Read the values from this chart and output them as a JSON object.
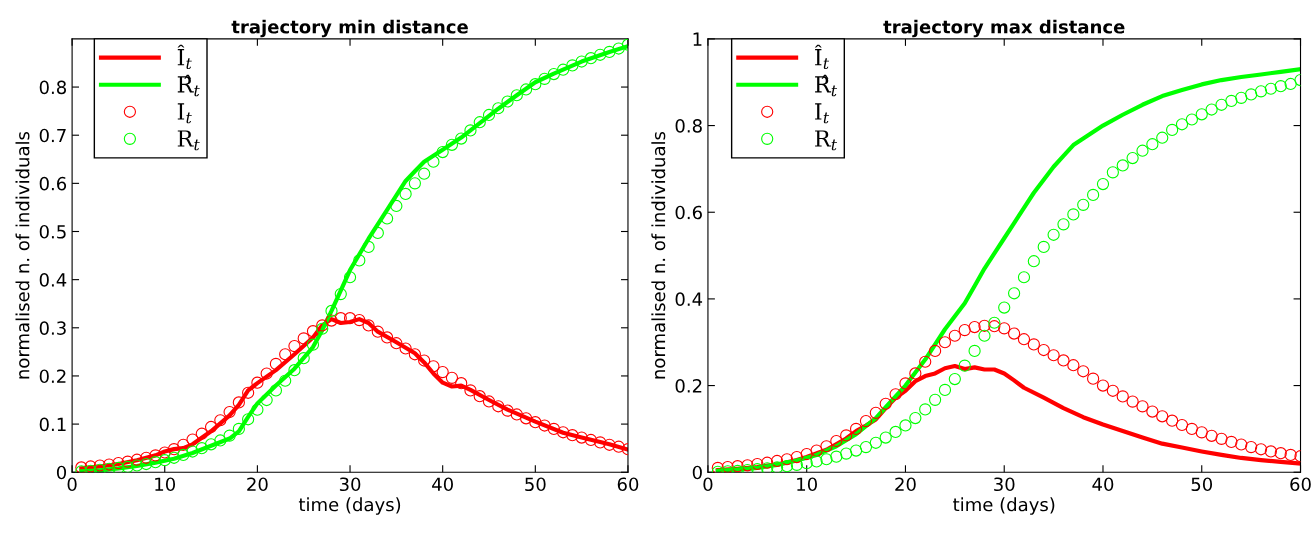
{
  "chart_data": [
    {
      "type": "line",
      "title": "trajectory min distance",
      "xlabel": "time (days)",
      "ylabel": "normalised n. of individuals",
      "x": [
        1,
        2,
        3,
        4,
        5,
        6,
        7,
        8,
        9,
        10,
        11,
        12,
        13,
        14,
        15,
        16,
        17,
        18,
        19,
        20,
        21,
        22,
        23,
        24,
        25,
        26,
        27,
        28,
        29,
        30,
        31,
        32,
        33,
        34,
        35,
        36,
        37,
        38,
        39,
        40,
        41,
        42,
        43,
        44,
        45,
        46,
        47,
        48,
        49,
        50,
        51,
        52,
        53,
        54,
        55,
        56,
        57,
        58,
        59,
        60
      ],
      "xlim": [
        0,
        60
      ],
      "xticks": [
        0,
        10,
        20,
        30,
        40,
        50,
        60
      ],
      "ylim": [
        0,
        0.9
      ],
      "yticks": [
        0,
        0.1,
        0.2,
        0.3,
        0.4,
        0.5,
        0.6,
        0.7,
        0.8
      ],
      "legend": "top left",
      "grid": false,
      "series": [
        {
          "name": "Î$_{t}$",
          "color": "#ff0000",
          "line_style": "solid",
          "x": [
            1,
            3,
            5,
            7,
            9,
            10,
            11,
            12,
            13,
            15,
            17,
            18,
            19,
            20,
            22,
            24,
            26,
            27,
            28,
            29,
            30,
            31,
            32,
            33,
            35,
            37,
            38,
            39,
            40,
            41,
            42,
            43,
            45,
            47,
            50,
            53,
            55,
            58,
            60
          ],
          "values": [
            0.008,
            0.012,
            0.017,
            0.025,
            0.035,
            0.043,
            0.048,
            0.05,
            0.058,
            0.085,
            0.118,
            0.14,
            0.17,
            0.185,
            0.212,
            0.245,
            0.28,
            0.305,
            0.318,
            0.31,
            0.312,
            0.318,
            0.31,
            0.292,
            0.27,
            0.247,
            0.228,
            0.205,
            0.186,
            0.178,
            0.18,
            0.171,
            0.15,
            0.13,
            0.105,
            0.082,
            0.072,
            0.058,
            0.047
          ]
        },
        {
          "name": "R̂$_{t}$",
          "color": "#00ff00",
          "line_style": "solid",
          "x": [
            1,
            3,
            5,
            7,
            9,
            11,
            13,
            15,
            17,
            18,
            19,
            20,
            22,
            24,
            26,
            27,
            28,
            30,
            32,
            34,
            35,
            36,
            37,
            38,
            40,
            42,
            44,
            46,
            48,
            50,
            52,
            55,
            58,
            60
          ],
          "values": [
            0.002,
            0.004,
            0.008,
            0.013,
            0.02,
            0.028,
            0.04,
            0.055,
            0.07,
            0.085,
            0.115,
            0.143,
            0.18,
            0.215,
            0.26,
            0.295,
            0.335,
            0.42,
            0.485,
            0.545,
            0.575,
            0.605,
            0.625,
            0.645,
            0.67,
            0.695,
            0.725,
            0.755,
            0.783,
            0.81,
            0.828,
            0.853,
            0.873,
            0.885
          ]
        },
        {
          "name": "I$_{t}$",
          "type": "scatter",
          "marker": "circle",
          "color": "#ff0000",
          "values": [
            0.01,
            0.012,
            0.014,
            0.016,
            0.019,
            0.022,
            0.026,
            0.03,
            0.035,
            0.041,
            0.048,
            0.057,
            0.068,
            0.08,
            0.094,
            0.108,
            0.125,
            0.145,
            0.165,
            0.186,
            0.205,
            0.225,
            0.245,
            0.262,
            0.278,
            0.293,
            0.305,
            0.315,
            0.32,
            0.32,
            0.316,
            0.305,
            0.292,
            0.28,
            0.268,
            0.257,
            0.245,
            0.232,
            0.22,
            0.208,
            0.196,
            0.185,
            0.17,
            0.158,
            0.147,
            0.137,
            0.128,
            0.12,
            0.112,
            0.104,
            0.097,
            0.09,
            0.083,
            0.077,
            0.072,
            0.067,
            0.062,
            0.057,
            0.053,
            0.048
          ]
        },
        {
          "name": "R$_{t}$",
          "type": "scatter",
          "marker": "circle",
          "color": "#00ff00",
          "values": [
            0.002,
            0.003,
            0.005,
            0.007,
            0.009,
            0.011,
            0.014,
            0.017,
            0.021,
            0.025,
            0.03,
            0.036,
            0.043,
            0.05,
            0.058,
            0.066,
            0.076,
            0.09,
            0.11,
            0.13,
            0.15,
            0.17,
            0.19,
            0.212,
            0.237,
            0.265,
            0.298,
            0.335,
            0.37,
            0.405,
            0.44,
            0.468,
            0.497,
            0.527,
            0.553,
            0.578,
            0.6,
            0.62,
            0.645,
            0.665,
            0.68,
            0.693,
            0.71,
            0.727,
            0.742,
            0.756,
            0.77,
            0.783,
            0.795,
            0.806,
            0.817,
            0.827,
            0.836,
            0.845,
            0.853,
            0.86,
            0.867,
            0.873,
            0.88,
            0.888
          ]
        }
      ]
    },
    {
      "type": "line",
      "title": "trajectory max distance",
      "xlabel": "time (days)",
      "ylabel": "normalised n. of individuals",
      "x": [
        1,
        2,
        3,
        4,
        5,
        6,
        7,
        8,
        9,
        10,
        11,
        12,
        13,
        14,
        15,
        16,
        17,
        18,
        19,
        20,
        21,
        22,
        23,
        24,
        25,
        26,
        27,
        28,
        29,
        30,
        31,
        32,
        33,
        34,
        35,
        36,
        37,
        38,
        39,
        40,
        41,
        42,
        43,
        44,
        45,
        46,
        47,
        48,
        49,
        50,
        51,
        52,
        53,
        54,
        55,
        56,
        57,
        58,
        59,
        60
      ],
      "xlim": [
        0,
        60
      ],
      "xticks": [
        0,
        10,
        20,
        30,
        40,
        50,
        60
      ],
      "ylim": [
        0,
        1
      ],
      "yticks": [
        0,
        0.2,
        0.4,
        0.6,
        0.8,
        1
      ],
      "legend": "top left",
      "grid": false,
      "series": [
        {
          "name": "Î$_{t}$",
          "color": "#ff0000",
          "line_style": "solid",
          "x": [
            1,
            3,
            5,
            7,
            9,
            10,
            12,
            14,
            15,
            16,
            17,
            18,
            19,
            20,
            21,
            22,
            23,
            24,
            25,
            26,
            27,
            28,
            29,
            30,
            31,
            32,
            34,
            36,
            38,
            40,
            42,
            44,
            46,
            48,
            50,
            52,
            54,
            56,
            58,
            60
          ],
          "values": [
            0.005,
            0.008,
            0.012,
            0.018,
            0.028,
            0.035,
            0.052,
            0.078,
            0.095,
            0.108,
            0.122,
            0.148,
            0.172,
            0.188,
            0.21,
            0.222,
            0.228,
            0.24,
            0.245,
            0.238,
            0.242,
            0.237,
            0.237,
            0.228,
            0.212,
            0.195,
            0.172,
            0.148,
            0.127,
            0.11,
            0.095,
            0.08,
            0.066,
            0.057,
            0.048,
            0.04,
            0.033,
            0.028,
            0.024,
            0.02
          ]
        },
        {
          "name": "R̂$_{t}$",
          "color": "#00ff00",
          "line_style": "solid",
          "x": [
            1,
            3,
            5,
            7,
            9,
            11,
            13,
            15,
            17,
            18,
            19,
            20,
            21,
            22,
            24,
            26,
            27,
            28,
            29,
            30,
            31,
            32,
            33,
            34,
            35,
            36,
            37,
            38,
            40,
            42,
            44,
            46,
            48,
            50,
            52,
            54,
            56,
            58,
            60
          ],
          "values": [
            0.003,
            0.006,
            0.01,
            0.017,
            0.027,
            0.04,
            0.06,
            0.088,
            0.125,
            0.15,
            0.175,
            0.2,
            0.23,
            0.26,
            0.33,
            0.39,
            0.43,
            0.47,
            0.505,
            0.54,
            0.575,
            0.61,
            0.645,
            0.675,
            0.705,
            0.73,
            0.755,
            0.77,
            0.8,
            0.825,
            0.848,
            0.868,
            0.882,
            0.895,
            0.905,
            0.912,
            0.918,
            0.924,
            0.93
          ]
        },
        {
          "name": "I$_{t}$",
          "type": "scatter",
          "marker": "circle",
          "color": "#ff0000",
          "values": [
            0.01,
            0.012,
            0.014,
            0.016,
            0.019,
            0.022,
            0.026,
            0.03,
            0.035,
            0.042,
            0.05,
            0.06,
            0.072,
            0.085,
            0.1,
            0.118,
            0.137,
            0.158,
            0.18,
            0.205,
            0.228,
            0.255,
            0.28,
            0.3,
            0.315,
            0.328,
            0.335,
            0.338,
            0.337,
            0.332,
            0.32,
            0.307,
            0.295,
            0.282,
            0.27,
            0.258,
            0.247,
            0.233,
            0.216,
            0.2,
            0.188,
            0.175,
            0.163,
            0.152,
            0.14,
            0.129,
            0.119,
            0.109,
            0.1,
            0.092,
            0.084,
            0.077,
            0.07,
            0.064,
            0.058,
            0.053,
            0.048,
            0.044,
            0.04,
            0.037
          ]
        },
        {
          "name": "R$_{t}$",
          "type": "scatter",
          "marker": "circle",
          "color": "#00ff00",
          "values": [
            0.001,
            0.002,
            0.003,
            0.005,
            0.007,
            0.009,
            0.011,
            0.014,
            0.017,
            0.021,
            0.025,
            0.03,
            0.036,
            0.043,
            0.05,
            0.058,
            0.068,
            0.08,
            0.093,
            0.108,
            0.125,
            0.145,
            0.167,
            0.19,
            0.215,
            0.246,
            0.28,
            0.315,
            0.345,
            0.38,
            0.413,
            0.45,
            0.487,
            0.52,
            0.548,
            0.572,
            0.595,
            0.617,
            0.64,
            0.665,
            0.692,
            0.708,
            0.725,
            0.742,
            0.757,
            0.772,
            0.79,
            0.803,
            0.814,
            0.826,
            0.837,
            0.848,
            0.857,
            0.864,
            0.872,
            0.879,
            0.885,
            0.891,
            0.896,
            0.905
          ]
        }
      ]
    }
  ]
}
